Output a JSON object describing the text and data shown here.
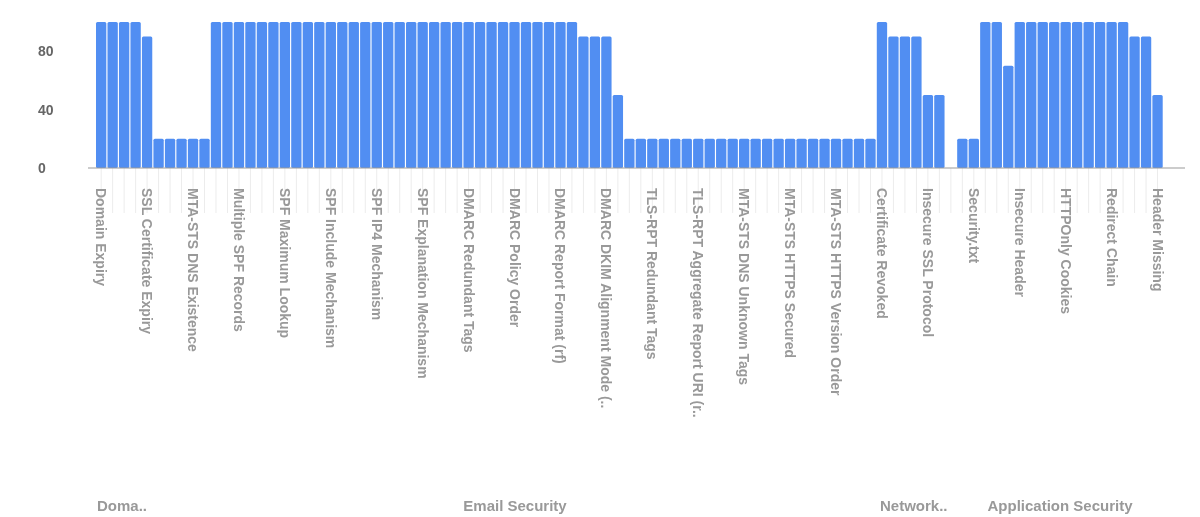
{
  "chart_data": {
    "type": "bar",
    "categories": [
      "Domain Expiry",
      null,
      null,
      null,
      "SSL Certificate Expiry",
      null,
      null,
      null,
      "MTA-STS DNS Existence",
      null,
      null,
      null,
      "Multiple SPF Records",
      null,
      null,
      null,
      "SPF Maximum Lookup",
      null,
      null,
      null,
      "SPF Include Mechanism",
      null,
      null,
      null,
      "SPF IP4 Mechanism",
      null,
      null,
      null,
      "SPF Explanation Mechanism",
      null,
      null,
      null,
      "DMARC Redundant Tags",
      null,
      null,
      null,
      "DMARC Policy Order",
      null,
      null,
      null,
      "DMARC Report Format (rf)",
      null,
      null,
      null,
      "DMARC DKIM Alignment Mode (..",
      null,
      null,
      null,
      "TLS-RPT Redundant Tags",
      null,
      null,
      null,
      "TLS-RPT Aggregate Report URI (r..",
      null,
      null,
      null,
      "MTA-STS DNS Unknown Tags",
      null,
      null,
      null,
      "MTA-STS HTTPS Secured",
      null,
      null,
      null,
      "MTA-STS HTTPS Version Order",
      null,
      null,
      null,
      "Certificate Revoked",
      null,
      null,
      null,
      "Insecure SSL Protocol",
      null,
      null,
      null,
      "Security.txt",
      null,
      null,
      null,
      "Insecure Header",
      null,
      null,
      null,
      "HTTPOnly Cookies",
      null,
      null,
      null,
      "Redirect Chain",
      null,
      null,
      null,
      "Header Missing"
    ],
    "values": [
      100,
      100,
      100,
      100,
      90,
      20,
      20,
      20,
      20,
      20,
      100,
      100,
      100,
      100,
      100,
      100,
      100,
      100,
      100,
      100,
      100,
      100,
      100,
      100,
      100,
      100,
      100,
      100,
      100,
      100,
      100,
      100,
      100,
      100,
      100,
      100,
      100,
      100,
      100,
      100,
      100,
      100,
      90,
      90,
      90,
      50,
      20,
      20,
      20,
      20,
      20,
      20,
      20,
      20,
      20,
      20,
      20,
      20,
      20,
      20,
      20,
      20,
      20,
      20,
      20,
      20,
      20,
      20,
      100,
      90,
      90,
      90,
      50,
      50,
      0,
      20,
      20,
      100,
      100,
      70,
      100,
      100,
      100,
      100,
      100,
      100,
      100,
      100,
      100,
      100,
      90,
      90,
      50
    ],
    "color": "#518ef2",
    "ylim": [
      0,
      100
    ],
    "yticks": [
      0,
      40,
      80
    ],
    "grid": false,
    "annotations": [
      "Doma..",
      "Email Security",
      "Network..",
      "Application Security"
    ]
  }
}
